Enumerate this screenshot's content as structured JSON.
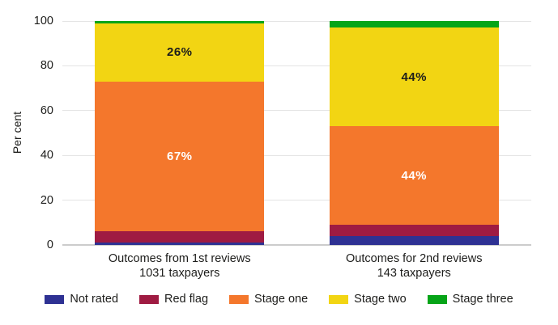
{
  "chart_data": {
    "type": "stacked_bar",
    "title": "",
    "ylabel": "Per cent",
    "yticks": [
      0,
      20,
      40,
      60,
      80,
      100
    ],
    "ylim": [
      0,
      100
    ],
    "grid": true,
    "legend_position": "bottom",
    "categories": [
      {
        "line1": "Outcomes from 1st reviews",
        "line2": "1031 taxpayers"
      },
      {
        "line1": "Outcomes for 2nd reviews",
        "line2": "143 taxpayers"
      }
    ],
    "series": [
      {
        "name": "Not rated",
        "color": "#2e3193",
        "values": [
          1,
          4
        ],
        "labels": [
          "",
          ""
        ],
        "label_color": "#ffffff"
      },
      {
        "name": "Red flag",
        "color": "#9f1b42",
        "values": [
          5,
          5
        ],
        "labels": [
          "",
          ""
        ],
        "label_color": "#ffffff"
      },
      {
        "name": "Stage one",
        "color": "#f4772c",
        "values": [
          67,
          44
        ],
        "labels": [
          "67%",
          "44%"
        ],
        "label_color": "#ffffff"
      },
      {
        "name": "Stage two",
        "color": "#f2d513",
        "values": [
          26,
          44
        ],
        "labels": [
          "26%",
          "44%"
        ],
        "label_color": "#1d1d1b"
      },
      {
        "name": "Stage three",
        "color": "#06a418",
        "values": [
          1,
          3
        ],
        "labels": [
          "",
          ""
        ],
        "label_color": "#ffffff"
      }
    ]
  },
  "colors": {
    "gridline": "#e4e4e4",
    "baseline": "#cccccc",
    "text": "#1d1d1b"
  }
}
